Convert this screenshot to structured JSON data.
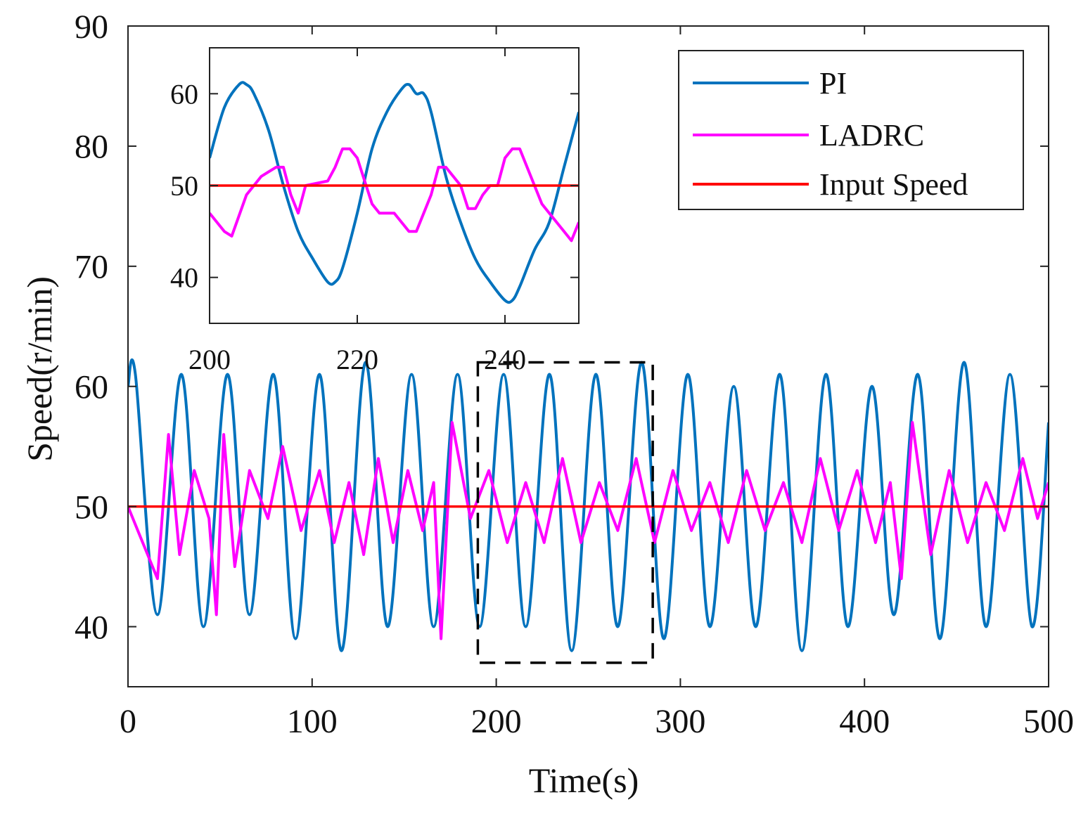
{
  "chart_data": {
    "type": "line",
    "xlabel": "Time(s)",
    "ylabel": "Speed(r/min)",
    "xlim": [
      0,
      500
    ],
    "ylim": [
      35,
      90
    ],
    "xticks": [
      "0",
      "100",
      "200",
      "300",
      "400",
      "500"
    ],
    "yticks": [
      "40",
      "50",
      "60",
      "70",
      "80",
      "90"
    ],
    "grid": false,
    "legend_position": "top-right",
    "colors": {
      "PI": "#0072BD",
      "LADRC": "#FF00FF",
      "Input Speed": "#FF0000",
      "box": "#000000"
    },
    "series": [
      {
        "name": "PI",
        "description": "oscillation about 50, amplitude ~10, period ~25 s",
        "x": [
          0,
          4,
          16,
          29,
          41,
          54,
          66,
          79,
          91,
          104,
          116,
          129,
          141,
          154,
          166,
          179,
          191,
          204,
          216,
          229,
          241,
          254,
          266,
          279,
          291,
          304,
          316,
          329,
          341,
          354,
          366,
          379,
          391,
          404,
          416,
          429,
          441,
          454,
          466,
          479,
          491,
          500
        ],
        "y": [
          60,
          61,
          41,
          61,
          40,
          61,
          41,
          61,
          39,
          61,
          38,
          62,
          40,
          61,
          40,
          61,
          40,
          61,
          40,
          61,
          38,
          61,
          40,
          62,
          39,
          61,
          40,
          60,
          40,
          61,
          38,
          61,
          40,
          60,
          41,
          61,
          39,
          62,
          40,
          61,
          40,
          57
        ]
      },
      {
        "name": "LADRC",
        "description": "noisy oscillation about 50 between ~39 and ~57",
        "x": [
          0,
          8,
          16,
          22,
          28,
          36,
          44,
          48,
          52,
          58,
          66,
          76,
          84,
          94,
          104,
          112,
          120,
          128,
          136,
          144,
          152,
          160,
          166,
          170,
          176,
          186,
          196,
          206,
          216,
          226,
          236,
          246,
          256,
          266,
          276,
          286,
          296,
          306,
          316,
          326,
          336,
          346,
          356,
          366,
          376,
          386,
          396,
          406,
          414,
          420,
          426,
          436,
          446,
          456,
          466,
          476,
          486,
          494,
          500
        ],
        "y": [
          50,
          47,
          44,
          56,
          46,
          53,
          49,
          41,
          56,
          45,
          53,
          49,
          55,
          48,
          53,
          47,
          52,
          46,
          54,
          47,
          53,
          48,
          52,
          39,
          57,
          49,
          53,
          47,
          52,
          47,
          54,
          47,
          52,
          48,
          54,
          47,
          53,
          48,
          52,
          47,
          53,
          48,
          52,
          47,
          54,
          48,
          53,
          47,
          52,
          44,
          57,
          46,
          53,
          47,
          52,
          48,
          54,
          49,
          52
        ]
      },
      {
        "name": "Input Speed",
        "x": [
          0,
          500
        ],
        "y": [
          50,
          50
        ]
      }
    ],
    "annotation": {
      "type": "dashed-box",
      "x_range": [
        190,
        285
      ],
      "y_range": [
        37,
        62
      ]
    },
    "inset": {
      "xlim": [
        200,
        250
      ],
      "ylim": [
        35,
        65
      ],
      "xticks": [
        "200",
        "220",
        "240"
      ],
      "yticks": [
        "40",
        "50",
        "60"
      ],
      "series": [
        {
          "name": "PI",
          "x": [
            200,
            202,
            204,
            205,
            206,
            208,
            210,
            212,
            214,
            216,
            217,
            218,
            220,
            222,
            224,
            226,
            227,
            228,
            229,
            230,
            232,
            234,
            236,
            238,
            240,
            241,
            242,
            244,
            246,
            248,
            250
          ],
          "y": [
            53,
            58.5,
            61,
            61,
            60,
            56,
            50,
            45,
            42,
            39.5,
            39.5,
            41,
            47,
            54,
            58,
            60.5,
            61,
            60,
            60,
            58,
            51,
            46,
            42,
            39.5,
            37.5,
            37.5,
            39,
            43,
            46,
            52,
            58
          ]
        },
        {
          "name": "LADRC",
          "x": [
            200,
            202,
            203,
            205,
            207,
            209,
            210,
            211,
            212,
            213,
            216,
            217,
            218,
            219,
            220,
            222,
            223,
            225,
            227,
            228,
            230,
            231,
            232,
            234,
            235,
            236,
            237,
            238,
            239,
            240,
            241,
            242,
            243,
            244,
            245,
            246,
            248,
            249,
            250
          ],
          "y": [
            47,
            45,
            44.5,
            49,
            51,
            52,
            52,
            49,
            47,
            50,
            50.5,
            52,
            54,
            54,
            53,
            48,
            47,
            47,
            45,
            45,
            49,
            52,
            52,
            50,
            47.5,
            47.5,
            49,
            50,
            50,
            53,
            54,
            54,
            52,
            50,
            48,
            47,
            45,
            44,
            46
          ]
        },
        {
          "name": "Input Speed",
          "x": [
            200,
            250
          ],
          "y": [
            50,
            50
          ]
        }
      ]
    }
  }
}
